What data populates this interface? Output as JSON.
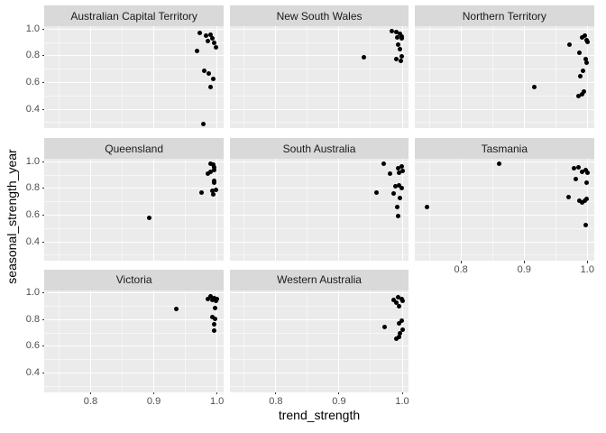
{
  "chart_data": {
    "type": "scatter",
    "title": "",
    "xlabel": "trend_strength",
    "ylabel": "seasonal_strength_year",
    "x_ticks": [
      0.8,
      0.9,
      1.0
    ],
    "y_ticks": [
      1.0,
      0.8,
      0.6,
      0.4
    ],
    "x_minor": [
      0.75,
      0.85,
      0.95
    ],
    "y_minor": [
      0.3,
      0.5,
      0.7,
      0.9
    ],
    "x_range": [
      0.727,
      1.0105
    ],
    "y_range": [
      0.2585,
      1.022
    ],
    "grid": "on",
    "legend": "none",
    "point_color": "#000000",
    "panel_bg": "#ebebeb",
    "strip_bg": "#d9d9d9",
    "grid_color": "#ffffff",
    "tick_label_color": "#4d4d4d",
    "facets": [
      {
        "label": "Australian Capital Territory",
        "row": 0,
        "col": 0,
        "points": [
          [
            0.972,
            0.968
          ],
          [
            0.982,
            0.95
          ],
          [
            0.99,
            0.955
          ],
          [
            0.993,
            0.928
          ],
          [
            0.985,
            0.913
          ],
          [
            0.996,
            0.894
          ],
          [
            0.999,
            0.86
          ],
          [
            0.968,
            0.833
          ],
          [
            0.98,
            0.69
          ],
          [
            0.987,
            0.668
          ],
          [
            0.994,
            0.625
          ],
          [
            0.99,
            0.565
          ],
          [
            0.979,
            0.29
          ]
        ]
      },
      {
        "label": "New South Wales",
        "row": 0,
        "col": 1,
        "points": [
          [
            0.939,
            0.786
          ],
          [
            0.984,
            0.988
          ],
          [
            0.99,
            0.976
          ],
          [
            0.996,
            0.966
          ],
          [
            0.999,
            0.944
          ],
          [
            0.992,
            0.94
          ],
          [
            0.999,
            0.93
          ],
          [
            0.994,
            0.886
          ],
          [
            0.996,
            0.849
          ],
          [
            0.999,
            0.793
          ],
          [
            0.99,
            0.775
          ],
          [
            0.998,
            0.76
          ]
        ]
      },
      {
        "label": "Northern Territory",
        "row": 0,
        "col": 2,
        "points": [
          [
            0.991,
            0.936
          ],
          [
            0.996,
            0.948
          ],
          [
            0.999,
            0.918
          ],
          [
            1.0,
            0.905
          ],
          [
            0.971,
            0.881
          ],
          [
            0.988,
            0.824
          ],
          [
            0.997,
            0.774
          ],
          [
            0.999,
            0.747
          ],
          [
            0.993,
            0.685
          ],
          [
            0.989,
            0.645
          ],
          [
            0.916,
            0.567
          ],
          [
            0.994,
            0.529
          ],
          [
            0.991,
            0.511
          ],
          [
            0.986,
            0.496
          ]
        ]
      },
      {
        "label": "Queensland",
        "row": 1,
        "col": 0,
        "points": [
          [
            0.99,
            0.988
          ],
          [
            0.994,
            0.977
          ],
          [
            0.996,
            0.959
          ],
          [
            0.995,
            0.936
          ],
          [
            0.99,
            0.927
          ],
          [
            0.986,
            0.909
          ],
          [
            0.995,
            0.859
          ],
          [
            0.996,
            0.841
          ],
          [
            0.998,
            0.79
          ],
          [
            0.992,
            0.784
          ],
          [
            0.994,
            0.754
          ],
          [
            0.976,
            0.768
          ],
          [
            0.893,
            0.58
          ]
        ]
      },
      {
        "label": "South Australia",
        "row": 1,
        "col": 1,
        "points": [
          [
            0.971,
            0.987
          ],
          [
            0.999,
            0.965
          ],
          [
            0.994,
            0.95
          ],
          [
            1.0,
            0.931
          ],
          [
            0.995,
            0.92
          ],
          [
            0.98,
            0.909
          ],
          [
            0.995,
            0.822
          ],
          [
            0.989,
            0.813
          ],
          [
            0.999,
            0.8
          ],
          [
            0.96,
            0.768
          ],
          [
            0.987,
            0.761
          ],
          [
            0.997,
            0.727
          ],
          [
            0.992,
            0.663
          ],
          [
            0.994,
            0.595
          ]
        ]
      },
      {
        "label": "Tasmania",
        "row": 1,
        "col": 2,
        "points": [
          [
            0.86,
            0.985
          ],
          [
            0.746,
            0.66
          ],
          [
            0.986,
            0.96
          ],
          [
            0.979,
            0.954
          ],
          [
            0.998,
            0.936
          ],
          [
            0.991,
            0.926
          ],
          [
            1.0,
            0.92
          ],
          [
            0.982,
            0.868
          ],
          [
            0.999,
            0.841
          ],
          [
            0.97,
            0.732
          ],
          [
            0.999,
            0.724
          ],
          [
            0.996,
            0.71
          ],
          [
            0.988,
            0.709
          ],
          [
            0.991,
            0.693
          ],
          [
            0.997,
            0.528
          ]
        ]
      },
      {
        "label": "Victoria",
        "row": 2,
        "col": 0,
        "points": [
          [
            0.936,
            0.877
          ],
          [
            0.99,
            0.973
          ],
          [
            0.995,
            0.961
          ],
          [
            1.0,
            0.957
          ],
          [
            0.985,
            0.957
          ],
          [
            0.992,
            0.95
          ],
          [
            0.998,
            0.943
          ],
          [
            0.997,
            0.889
          ],
          [
            0.992,
            0.821
          ],
          [
            0.997,
            0.807
          ],
          [
            0.995,
            0.762
          ],
          [
            0.995,
            0.717
          ]
        ]
      },
      {
        "label": "Western Australia",
        "row": 2,
        "col": 1,
        "points": [
          [
            0.994,
            0.966
          ],
          [
            0.999,
            0.957
          ],
          [
            0.987,
            0.95
          ],
          [
            1.0,
            0.939
          ],
          [
            0.991,
            0.927
          ],
          [
            0.995,
            0.898
          ],
          [
            0.999,
            0.791
          ],
          [
            0.995,
            0.769
          ],
          [
            0.972,
            0.746
          ],
          [
            1.0,
            0.723
          ],
          [
            0.997,
            0.7
          ],
          [
            0.995,
            0.671
          ],
          [
            0.99,
            0.655
          ]
        ]
      }
    ]
  }
}
